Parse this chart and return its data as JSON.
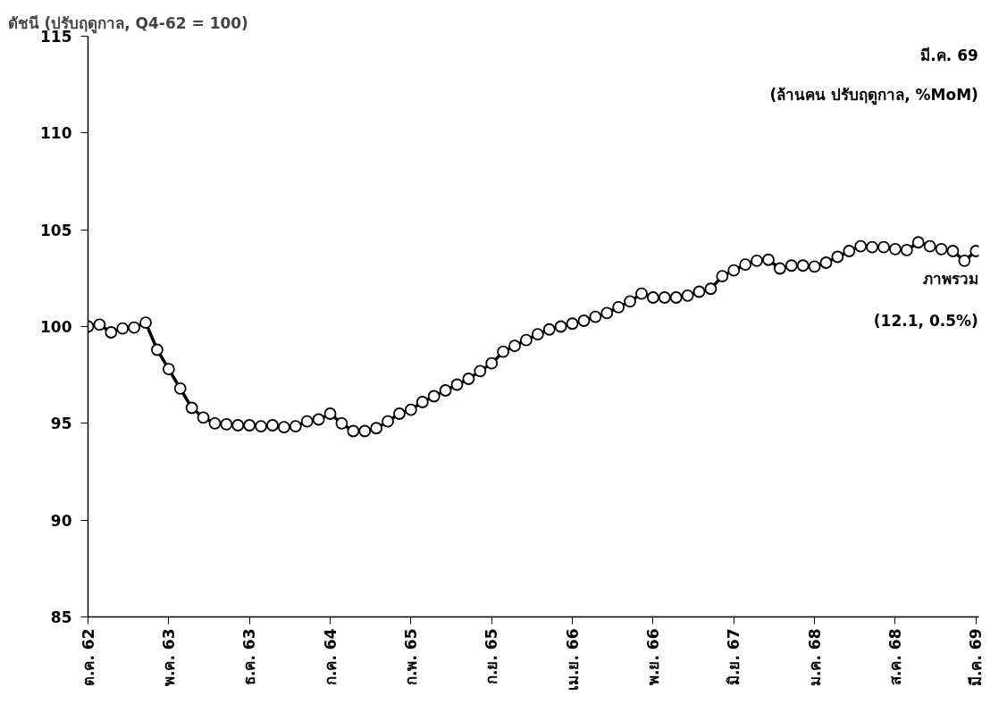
{
  "chart_data": {
    "type": "line",
    "ylabel": "ดัชนี (ปรับฤดูกาล, Q4-62 = 100)",
    "annotations": [
      "มี.ค. 69",
      "(ล้านคน ปรับฤดูกาล, %MoM)",
      "(12.1, 0.5%)"
    ],
    "categories": [
      "ต.ค. 62",
      null,
      null,
      null,
      null,
      null,
      null,
      "พ.ค. 63",
      null,
      null,
      null,
      null,
      null,
      null,
      "ธ.ค. 63",
      null,
      null,
      null,
      null,
      null,
      null,
      "ก.ค. 64",
      null,
      null,
      null,
      null,
      null,
      null,
      "ก.พ. 65",
      null,
      null,
      null,
      null,
      null,
      null,
      "ก.ย. 65",
      null,
      null,
      null,
      null,
      null,
      null,
      "เม.ย. 66",
      null,
      null,
      null,
      null,
      null,
      null,
      "พ.ย. 66",
      null,
      null,
      null,
      null,
      null,
      null,
      "มิ.ย. 67",
      null,
      null,
      null,
      null,
      null,
      null,
      "ม.ค. 68",
      null,
      null,
      null,
      null,
      null,
      null,
      "ส.ค. 68",
      null,
      null,
      null,
      null,
      null,
      null,
      "มี.ค. 69"
    ],
    "series": [
      {
        "name": "ภาพรวม",
        "color": "#000000",
        "values": [
          100.0,
          100.1,
          99.7,
          99.9,
          99.95,
          100.2,
          98.8,
          97.8,
          96.8,
          95.8,
          95.3,
          95.0,
          94.95,
          94.9,
          94.9,
          94.85,
          94.9,
          94.8,
          94.85,
          95.1,
          95.2,
          95.5,
          95.0,
          94.6,
          94.6,
          94.75,
          95.1,
          95.5,
          95.7,
          96.1,
          96.4,
          96.7,
          97.0,
          97.3,
          97.7,
          98.1,
          98.7,
          99.0,
          99.3,
          99.6,
          99.85,
          100.0,
          100.15,
          100.3,
          100.5,
          100.7,
          101.0,
          101.3,
          101.7,
          101.5,
          101.5,
          101.5,
          101.6,
          101.8,
          101.95,
          102.6,
          102.9,
          103.2,
          103.4,
          103.45,
          103.0,
          103.15,
          103.15,
          103.1,
          103.3,
          103.6,
          103.9,
          104.15,
          104.1,
          104.1,
          104.0,
          103.95,
          104.35,
          104.15,
          104.0,
          103.9,
          103.4,
          103.9
        ]
      }
    ],
    "ylim": [
      85,
      115
    ],
    "yticks": [
      85,
      90,
      95,
      100,
      105,
      110,
      115
    ],
    "grid": false,
    "marker": "circle",
    "line_style": "solid"
  }
}
